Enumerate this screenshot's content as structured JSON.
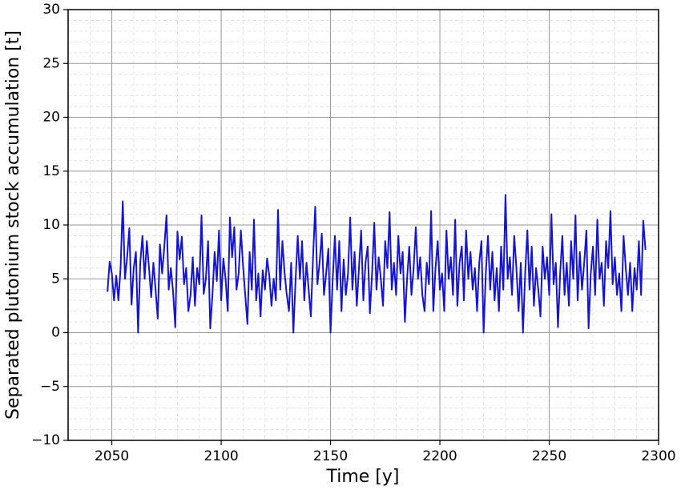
{
  "chart_data": {
    "type": "line",
    "xlabel": "Time [y]",
    "ylabel": "Separated plutonium stock accumulation [t]",
    "color": "#1414d2",
    "grid": true,
    "minor_grid": true,
    "xlim": [
      2030,
      2300
    ],
    "ylim": [
      -10,
      30
    ],
    "xticks": [
      2050,
      2100,
      2150,
      2200,
      2250,
      2300
    ],
    "yticks": [
      {
        "value": -10,
        "label": "−10"
      },
      {
        "value": -5,
        "label": "−5"
      },
      0,
      5,
      10,
      15,
      20,
      25,
      30
    ],
    "x": [
      2048,
      2049,
      2050,
      2051,
      2052,
      2053,
      2054,
      2055,
      2056,
      2057,
      2058,
      2059,
      2060,
      2061,
      2062,
      2063,
      2064,
      2065,
      2066,
      2067,
      2068,
      2069,
      2070,
      2071,
      2072,
      2073,
      2074,
      2075,
      2076,
      2077,
      2078,
      2079,
      2080,
      2081,
      2082,
      2083,
      2084,
      2085,
      2086,
      2087,
      2088,
      2089,
      2090,
      2091,
      2092,
      2093,
      2094,
      2095,
      2096,
      2097,
      2098,
      2099,
      2100,
      2101,
      2102,
      2103,
      2104,
      2105,
      2106,
      2107,
      2108,
      2109,
      2110,
      2111,
      2112,
      2113,
      2114,
      2115,
      2116,
      2117,
      2118,
      2119,
      2120,
      2121,
      2122,
      2123,
      2124,
      2125,
      2126,
      2127,
      2128,
      2129,
      2130,
      2131,
      2132,
      2133,
      2134,
      2135,
      2136,
      2137,
      2138,
      2139,
      2140,
      2141,
      2142,
      2143,
      2144,
      2145,
      2146,
      2147,
      2148,
      2149,
      2150,
      2151,
      2152,
      2153,
      2154,
      2155,
      2156,
      2157,
      2158,
      2159,
      2160,
      2161,
      2162,
      2163,
      2164,
      2165,
      2166,
      2167,
      2168,
      2169,
      2170,
      2171,
      2172,
      2173,
      2174,
      2175,
      2176,
      2177,
      2178,
      2179,
      2180,
      2181,
      2182,
      2183,
      2184,
      2185,
      2186,
      2187,
      2188,
      2189,
      2190,
      2191,
      2192,
      2193,
      2194,
      2195,
      2196,
      2197,
      2198,
      2199,
      2200,
      2201,
      2202,
      2203,
      2204,
      2205,
      2206,
      2207,
      2208,
      2209,
      2210,
      2211,
      2212,
      2213,
      2214,
      2215,
      2216,
      2217,
      2218,
      2219,
      2220,
      2221,
      2222,
      2223,
      2224,
      2225,
      2226,
      2227,
      2228,
      2229,
      2230,
      2231,
      2232,
      2233,
      2234,
      2235,
      2236,
      2237,
      2238,
      2239,
      2240,
      2241,
      2242,
      2243,
      2244,
      2245,
      2246,
      2247,
      2248,
      2249,
      2250,
      2251,
      2252,
      2253,
      2254,
      2255,
      2256,
      2257,
      2258,
      2259,
      2260,
      2261,
      2262,
      2263,
      2264,
      2265,
      2266,
      2267,
      2268,
      2269,
      2270,
      2271,
      2272,
      2273,
      2274,
      2275,
      2276,
      2277,
      2278,
      2279,
      2280,
      2281,
      2282,
      2283,
      2284,
      2285,
      2286,
      2287,
      2288,
      2289,
      2290,
      2291,
      2292,
      2293,
      2294
    ],
    "values": [
      3.8,
      6.6,
      5.5,
      3.0,
      5.3,
      3.0,
      6.0,
      12.2,
      5.0,
      7.0,
      9.7,
      2.6,
      6.0,
      7.5,
      0.0,
      6.5,
      9.0,
      5.0,
      8.5,
      6.0,
      3.3,
      6.5,
      4.0,
      1.3,
      8.2,
      5.5,
      8.0,
      10.9,
      4.0,
      6.0,
      3.8,
      0.5,
      9.4,
      6.8,
      8.9,
      4.5,
      6.0,
      2.0,
      3.5,
      7.0,
      2.5,
      6.0,
      4.5,
      10.9,
      3.6,
      5.0,
      8.5,
      0.4,
      3.5,
      7.5,
      4.8,
      9.5,
      3.0,
      6.9,
      5.0,
      2.0,
      10.7,
      7.0,
      9.8,
      4.0,
      5.5,
      9.5,
      6.2,
      3.5,
      0.8,
      7.5,
      4.0,
      10.5,
      3.0,
      5.5,
      1.5,
      5.8,
      4.0,
      6.9,
      5.3,
      2.5,
      5.0,
      3.0,
      11.4,
      4.0,
      8.5,
      5.5,
      3.5,
      2.0,
      6.5,
      0.0,
      4.8,
      9.0,
      5.0,
      8.5,
      3.0,
      6.5,
      4.0,
      1.5,
      7.0,
      11.7,
      4.5,
      6.5,
      9.2,
      3.5,
      5.5,
      7.8,
      0.0,
      5.0,
      9.0,
      4.0,
      8.5,
      2.0,
      6.8,
      3.5,
      5.5,
      10.7,
      4.0,
      7.5,
      2.5,
      6.0,
      9.5,
      3.0,
      6.5,
      8.0,
      1.8,
      5.5,
      10.2,
      4.0,
      7.0,
      5.0,
      2.5,
      8.5,
      6.0,
      11.2,
      4.0,
      6.5,
      3.5,
      9.0,
      5.5,
      7.5,
      1.0,
      5.0,
      8.0,
      3.5,
      6.0,
      9.8,
      5.0,
      7.0,
      3.5,
      2.0,
      6.5,
      4.5,
      11.3,
      2.0,
      6.0,
      8.5,
      4.0,
      5.5,
      2.0,
      9.5,
      5.0,
      7.0,
      3.5,
      10.5,
      2.5,
      6.5,
      8.0,
      3.0,
      9.5,
      5.0,
      7.5,
      4.0,
      6.0,
      2.0,
      6.5,
      8.5,
      0.0,
      5.5,
      9.0,
      4.0,
      7.5,
      3.0,
      6.0,
      2.0,
      8.0,
      4.0,
      12.8,
      5.0,
      7.0,
      3.5,
      9.0,
      6.0,
      2.0,
      6.5,
      0.0,
      5.5,
      9.5,
      4.0,
      8.0,
      2.5,
      6.0,
      4.0,
      1.5,
      8.0,
      5.0,
      7.0,
      3.5,
      11.0,
      4.5,
      6.5,
      0.5,
      5.5,
      9.0,
      3.5,
      6.5,
      2.5,
      8.5,
      5.0,
      10.9,
      3.0,
      7.5,
      4.0,
      6.5,
      9.5,
      0.4,
      5.5,
      8.0,
      3.5,
      10.5,
      5.0,
      6.5,
      2.5,
      8.5,
      6.0,
      11.3,
      4.5,
      7.0,
      3.5,
      5.5,
      2.0,
      9.0,
      6.0,
      3.5,
      6.5,
      2.0,
      6.0,
      4.0,
      8.5,
      3.5,
      10.4,
      7.7
    ]
  }
}
